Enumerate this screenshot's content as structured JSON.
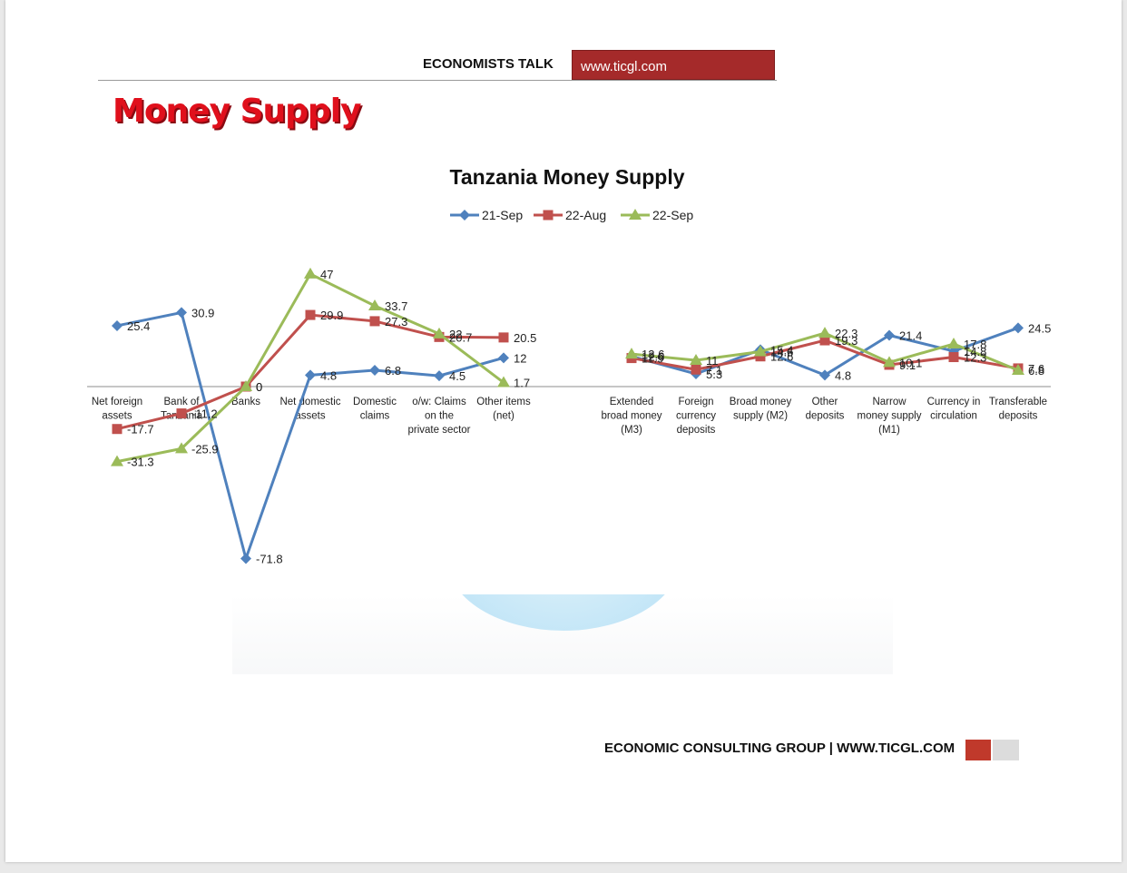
{
  "header": {
    "left_text": "ECONOMISTS TALK",
    "right_text": "www.ticgl.com"
  },
  "section_title": "Money Supply",
  "footer": {
    "text": "ECONOMIC CONSULTING GROUP | WWW.TICGL.COM"
  },
  "colors": {
    "header_red": "#a52a2a",
    "title_red": "#e0101c",
    "series_blue": "#4f81bd",
    "series_red": "#c0504d",
    "series_green": "#9bbb59"
  },
  "chart_data": {
    "type": "line",
    "title": "Tanzania Money Supply",
    "xlabel": "",
    "ylabel": "",
    "ylim": [
      -80,
      50
    ],
    "grid": false,
    "legend_position": "top",
    "groups": [
      {
        "categories": [
          "Net foreign assets",
          "Bank of Tanzania",
          "Banks",
          "Net domestic assets",
          "Domestic claims",
          "o/w: Claims on the private sector",
          "Other items (net)"
        ]
      },
      {
        "categories": [
          "Extended broad money (M3)",
          "Foreign currency deposits",
          "Broad money supply (M2)",
          "Other deposits",
          "Narrow money supply (M1)",
          "Currency in circulation",
          "Transferable deposits"
        ]
      }
    ],
    "series": [
      {
        "name": "21-Sep",
        "color": "#4f81bd",
        "marker": "diamond",
        "groups": [
          [
            25.4,
            30.9,
            -71.8,
            4.8,
            6.8,
            4.5,
            12
          ],
          [
            12.6,
            5.3,
            15.4,
            4.8,
            21.4,
            14.8,
            24.5
          ]
        ]
      },
      {
        "name": "22-Aug",
        "color": "#c0504d",
        "marker": "square",
        "groups": [
          [
            -17.7,
            -11.2,
            0,
            29.9,
            27.3,
            20.7,
            20.5
          ],
          [
            11.9,
            7.1,
            12.6,
            19.3,
            9.1,
            12.3,
            7.6
          ]
        ]
      },
      {
        "name": "22-Sep",
        "color": "#9bbb59",
        "marker": "triangle",
        "groups": [
          [
            -31.3,
            -25.9,
            0,
            47,
            33.7,
            22,
            1.7
          ],
          [
            13.6,
            11,
            14.6,
            22.3,
            10.1,
            17.8,
            6.8
          ]
        ]
      }
    ]
  }
}
